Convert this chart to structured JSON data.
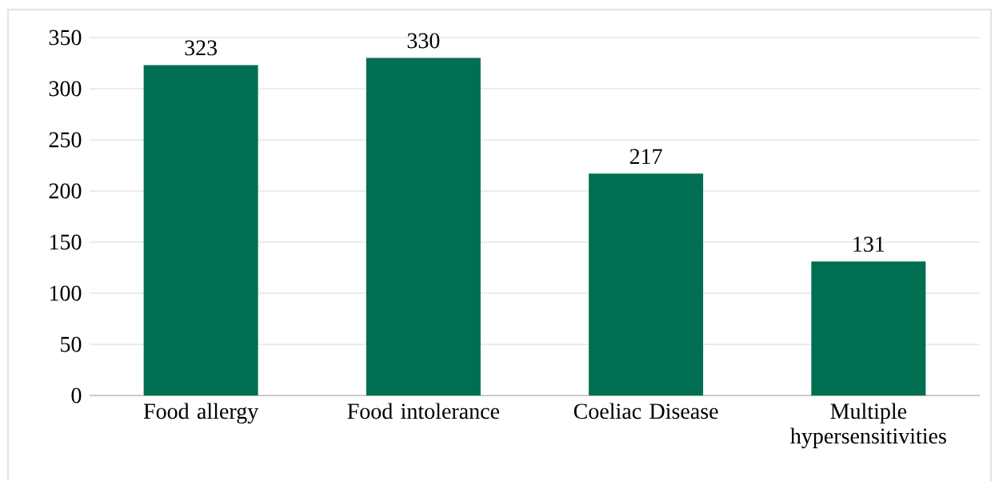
{
  "chart_data": {
    "type": "bar",
    "categories": [
      "Food allergy",
      "Food intolerance",
      "Coeliac Disease",
      "Multiple hypersensitivities"
    ],
    "values": [
      323,
      330,
      217,
      131
    ],
    "color": "#006e51",
    "ylim": [
      0,
      350
    ],
    "yticks": [
      0,
      50,
      100,
      150,
      200,
      250,
      300,
      350
    ],
    "grid": "y",
    "data_labels": true
  }
}
